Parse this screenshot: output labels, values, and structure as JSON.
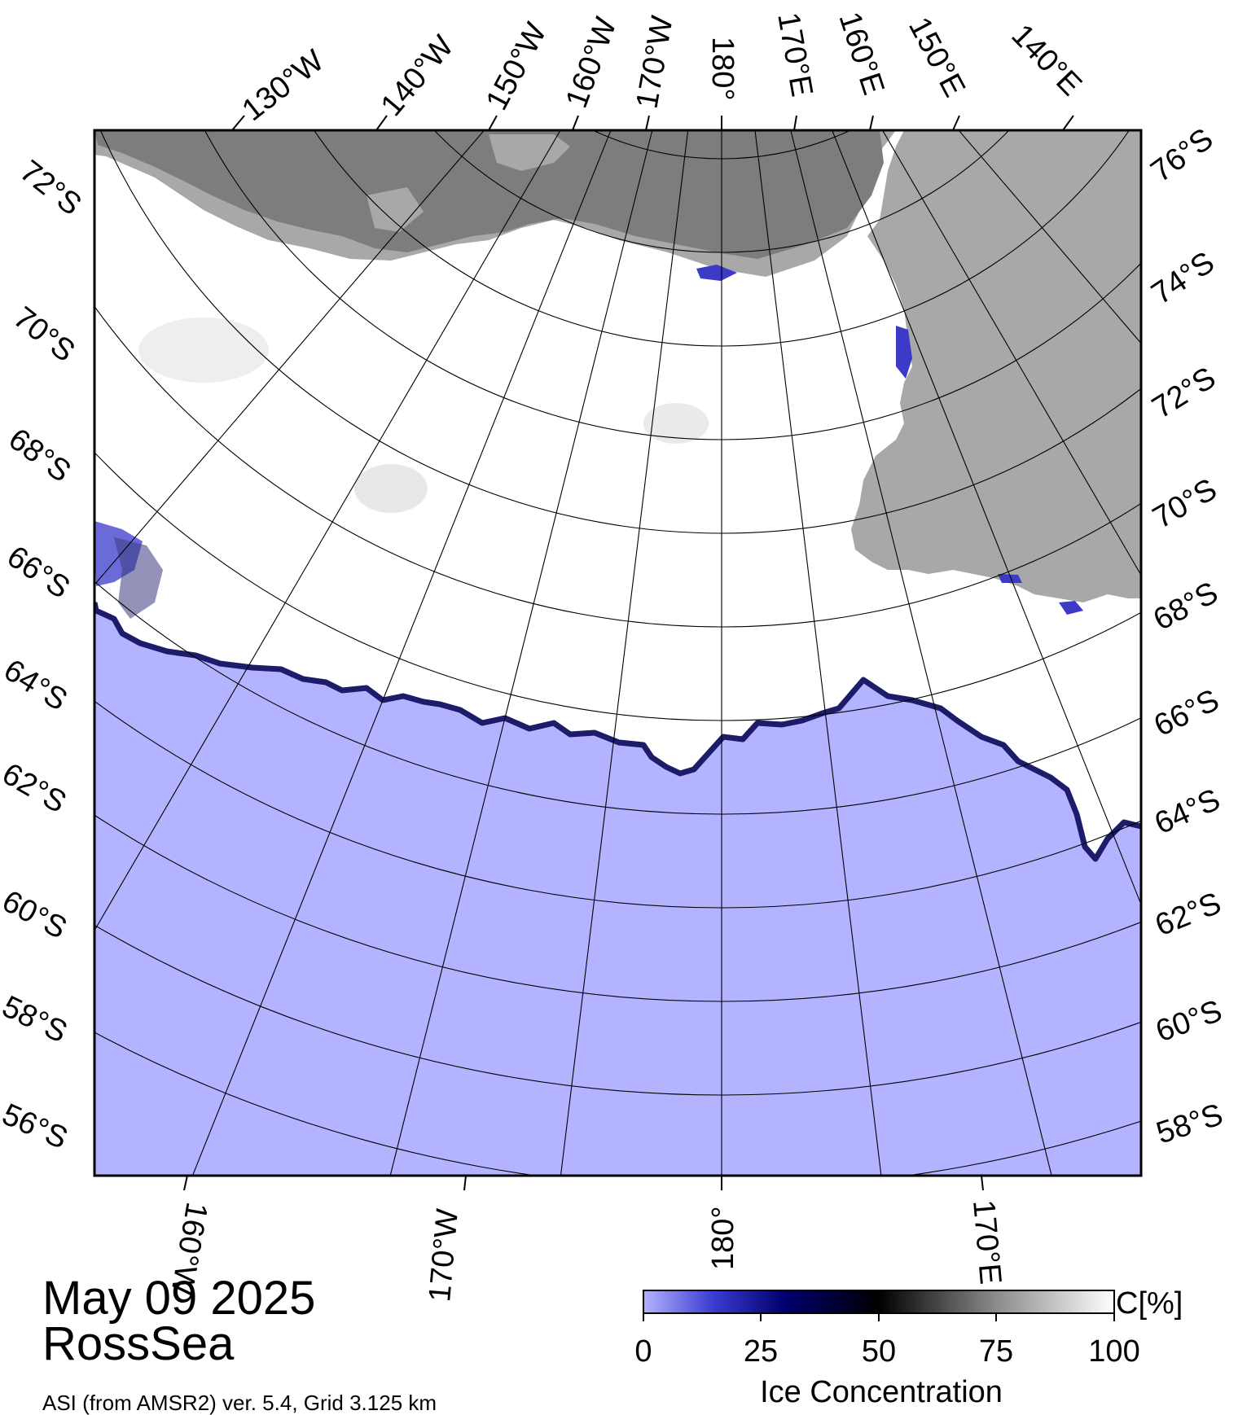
{
  "map": {
    "title_date": "May 09 2025",
    "region": "RossSea",
    "source": "ASI (from AMSR2) ver. 5.4,  Grid 3.125 km",
    "top_lon_labels": [
      "130°W",
      "140°W",
      "150°W",
      "160°W",
      "170°W",
      "180°",
      "170°E",
      "160°E",
      "150°E",
      "140°E"
    ],
    "bottom_lon_labels": [
      "160°W",
      "170°W",
      "180°",
      "170°E"
    ],
    "left_lat_labels": [
      "72°S",
      "70°S",
      "68°S",
      "66°S",
      "64°S",
      "62°S",
      "60°S",
      "58°S",
      "56°S"
    ],
    "right_lat_labels": [
      "76°S",
      "74°S",
      "72°S",
      "70°S",
      "68°S",
      "66°S",
      "64°S",
      "62°S",
      "60°S",
      "58°S"
    ],
    "colors": {
      "ocean": "#b3b3ff",
      "ice": "#ffffff",
      "land": "#a8a8a8",
      "ice_shelf": "#7d7d7d"
    }
  },
  "colorbar": {
    "label": "Ice Concentration",
    "unit": "C[%]",
    "ticks": [
      "0",
      "25",
      "50",
      "75",
      "100"
    ],
    "colors": [
      "#b3b3ff",
      "#00006e",
      "#000000",
      "#ffffff"
    ]
  }
}
